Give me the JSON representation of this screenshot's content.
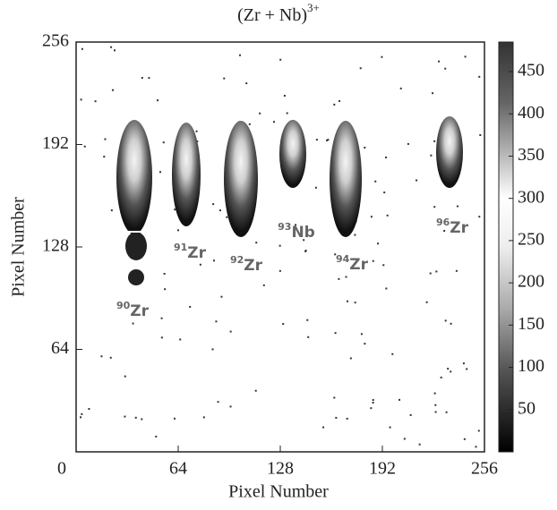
{
  "chart_data": {
    "type": "heatmap",
    "title": "(Zr + Nb)",
    "title_superscript": "3+",
    "xlabel": "Pixel Number",
    "ylabel": "Pixel Number",
    "xlim": [
      0,
      256
    ],
    "ylim": [
      0,
      256
    ],
    "xticks": [
      0,
      64,
      128,
      192,
      256
    ],
    "yticks": [
      64,
      128,
      192,
      256
    ],
    "colorbar": {
      "zlim": [
        0,
        485
      ],
      "ticks": [
        50,
        100,
        150,
        200,
        250,
        300,
        350,
        400,
        450
      ]
    },
    "annotations": [
      {
        "superscript": "90",
        "text": "Zr"
      },
      {
        "superscript": "91",
        "text": "Zr"
      },
      {
        "superscript": "92",
        "text": "Zr"
      },
      {
        "superscript": "93",
        "text": "Nb"
      },
      {
        "superscript": "94",
        "text": "Zr"
      },
      {
        "superscript": "96",
        "text": "Zr"
      }
    ]
  }
}
